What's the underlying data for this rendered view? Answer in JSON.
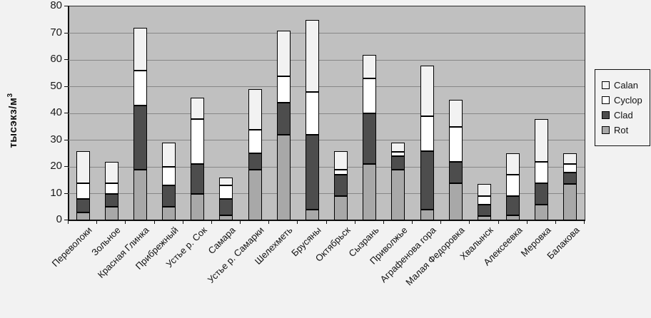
{
  "chart_data": {
    "type": "bar",
    "stacked": true,
    "title": "",
    "ylabel_base": "тысэкз/м",
    "ylabel_sup": "3",
    "xlabel": "",
    "ylim": [
      0,
      80
    ],
    "yticks": [
      0,
      10,
      20,
      30,
      40,
      50,
      60,
      70,
      80
    ],
    "grid": "horizontal",
    "plot_bg": "#c0c0c0",
    "gridline_color": "#878787",
    "legend_position": "right",
    "categories": [
      "Переволоки",
      "Зольное",
      "Красная Глинка",
      "Прибрежный",
      "Устье р. Сок",
      "Самара",
      "Устье р. Самарки",
      "Шелехметь",
      "Брусяны",
      "Октябрьск",
      "Сызрань",
      "Приволжье",
      "Аграфенова гора",
      "Малая Федоровка",
      "Хвалынск",
      "Алексеевка",
      "Меровка",
      "Балакова"
    ],
    "series": [
      {
        "name": "Rot",
        "color": "#a8a8a8",
        "values": [
          3,
          5,
          19,
          5,
          10,
          2,
          19,
          32,
          4,
          9,
          21,
          19,
          4,
          14,
          1.5,
          2,
          6,
          13.5
        ]
      },
      {
        "name": "Clad",
        "color": "#4d4d4d",
        "values": [
          5,
          5,
          24,
          8,
          11,
          6,
          6,
          12,
          28,
          8,
          19,
          5,
          22,
          8,
          4.5,
          7,
          8,
          4.5
        ]
      },
      {
        "name": "Cyclop",
        "color": "#ffffff",
        "values": [
          6,
          4,
          13,
          7,
          17,
          5,
          9,
          10,
          16,
          2,
          13,
          1.5,
          13,
          13,
          3,
          8,
          8,
          3
        ]
      },
      {
        "name": "Calan",
        "color": "#f2f2f2",
        "values": [
          12,
          8,
          16,
          9,
          8,
          3,
          15,
          17,
          27,
          7,
          9,
          3.5,
          19,
          10,
          4.5,
          8,
          16,
          4
        ]
      }
    ],
    "legend": [
      {
        "label": "Calan",
        "color": "#f2f2f2"
      },
      {
        "label": "Cyclop",
        "color": "#ffffff"
      },
      {
        "label": "Clad",
        "color": "#4d4d4d"
      },
      {
        "label": "Rot",
        "color": "#a8a8a8"
      }
    ]
  }
}
